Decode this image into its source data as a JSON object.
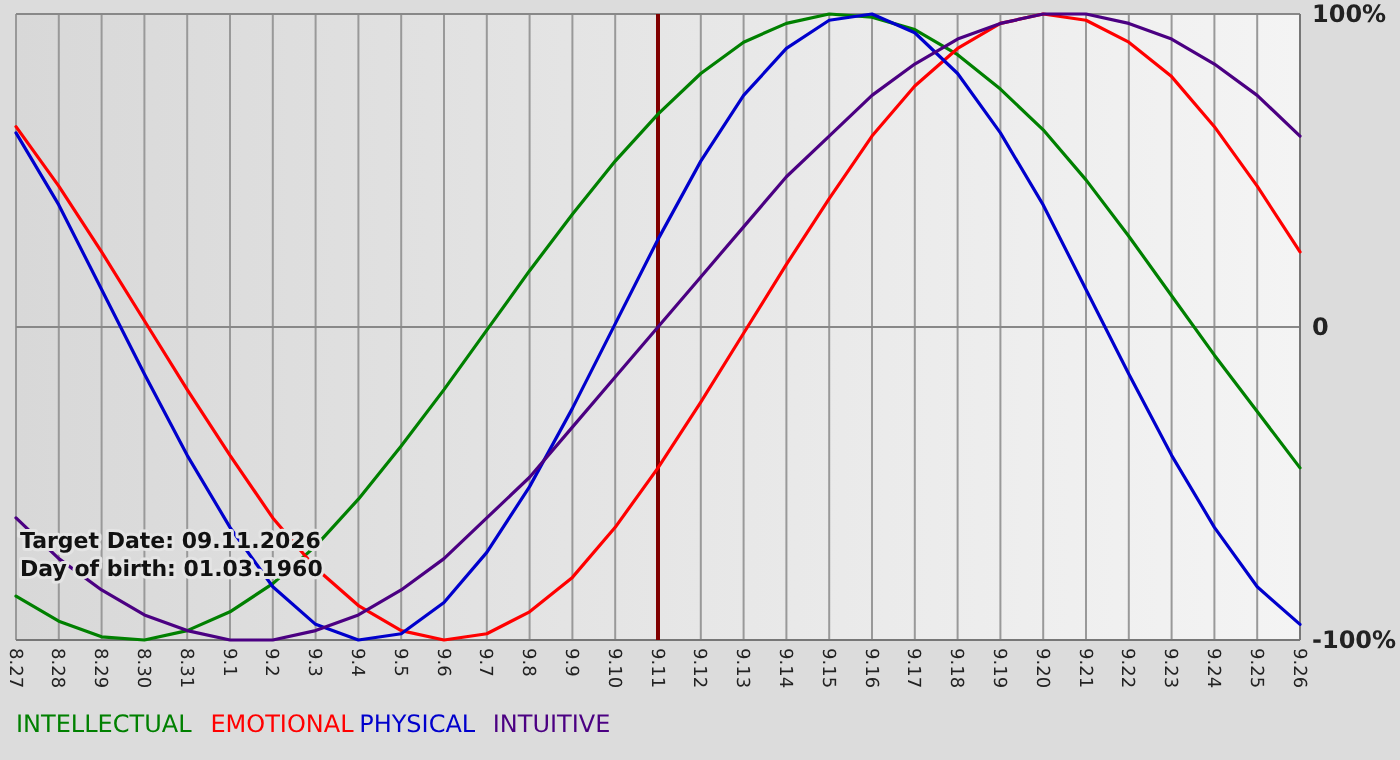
{
  "chart_data": {
    "type": "line",
    "categories": [
      "8.27",
      "8.28",
      "8.29",
      "8.30",
      "8.31",
      "9.1",
      "9.2",
      "9.3",
      "9.4",
      "9.5",
      "9.6",
      "9.7",
      "9.8",
      "9.9",
      "9.10",
      "9.11",
      "9.12",
      "9.13",
      "9.14",
      "9.15",
      "9.16",
      "9.17",
      "9.18",
      "9.19",
      "9.20",
      "9.21",
      "9.22",
      "9.23",
      "9.24",
      "9.25",
      "9.26"
    ],
    "series": [
      {
        "name": "INTELLECTUAL",
        "color": "#008000",
        "values": [
          -86,
          -94,
          -99,
          -100,
          -97,
          -91,
          -82,
          -70,
          -55,
          -38,
          -20,
          -1,
          18,
          36,
          53,
          68,
          81,
          91,
          97,
          100,
          99,
          95,
          87,
          76,
          63,
          47,
          29,
          10,
          -9,
          -27,
          -45
        ]
      },
      {
        "name": "EMOTIONAL",
        "color": "#ff0000",
        "values": [
          64,
          45,
          24,
          2,
          -20,
          -41,
          -61,
          -77,
          -89,
          -97,
          -100,
          -98,
          -91,
          -80,
          -64,
          -45,
          -24,
          -2,
          20,
          41,
          61,
          77,
          89,
          97,
          100,
          98,
          91,
          80,
          64,
          45,
          24
        ]
      },
      {
        "name": "PHYSICAL",
        "color": "#0000cc",
        "values": [
          62,
          39,
          12,
          -15,
          -41,
          -64,
          -83,
          -95,
          -100,
          -98,
          -88,
          -72,
          -51,
          -26,
          1,
          28,
          53,
          74,
          89,
          98,
          100,
          94,
          81,
          62,
          39,
          12,
          -15,
          -41,
          -64,
          -83,
          -95
        ]
      },
      {
        "name": "INTUITIVE",
        "color": "#4b0082",
        "values": [
          -61,
          -74,
          -84,
          -92,
          -97,
          -100,
          -100,
          -97,
          -92,
          -84,
          -74,
          -61,
          -48,
          -32,
          -16,
          0,
          16,
          32,
          48,
          61,
          74,
          84,
          92,
          97,
          100,
          100,
          97,
          92,
          84,
          74,
          61
        ]
      }
    ],
    "ylim": [
      -100,
      100
    ],
    "yticks": [
      {
        "value": -100,
        "label": "-100%"
      },
      0,
      {
        "value": 100,
        "label": "100%"
      }
    ],
    "ref_lines": [
      {
        "axis": "x",
        "value": "9.11",
        "color": "#800000"
      }
    ],
    "annotations": [
      "Target Date: 09.11.2026",
      "Day of birth: 01.03.1960"
    ],
    "grid": true,
    "legend": "bottom left",
    "marker": "none",
    "line_style": "solid"
  }
}
